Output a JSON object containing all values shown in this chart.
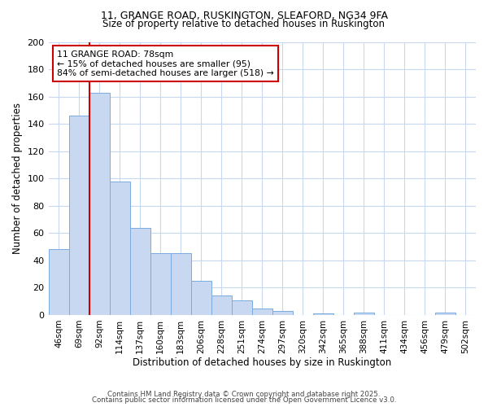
{
  "title1": "11, GRANGE ROAD, RUSKINGTON, SLEAFORD, NG34 9FA",
  "title2": "Size of property relative to detached houses in Ruskington",
  "xlabel": "Distribution of detached houses by size in Ruskington",
  "ylabel": "Number of detached properties",
  "categories": [
    "46sqm",
    "69sqm",
    "92sqm",
    "114sqm",
    "137sqm",
    "160sqm",
    "183sqm",
    "206sqm",
    "228sqm",
    "251sqm",
    "274sqm",
    "297sqm",
    "320sqm",
    "342sqm",
    "365sqm",
    "388sqm",
    "411sqm",
    "434sqm",
    "456sqm",
    "479sqm",
    "502sqm"
  ],
  "values": [
    48,
    146,
    163,
    98,
    64,
    45,
    45,
    25,
    14,
    11,
    5,
    3,
    0,
    1,
    0,
    2,
    0,
    0,
    0,
    2,
    0
  ],
  "bar_color": "#c8d8f0",
  "bar_edge_color": "#7aabe0",
  "red_line_x": 1.5,
  "annotation_text": "11 GRANGE ROAD: 78sqm\n← 15% of detached houses are smaller (95)\n84% of semi-detached houses are larger (518) →",
  "annotation_box_color": "#ffffff",
  "annotation_box_edge": "#cc0000",
  "red_line_color": "#cc0000",
  "grid_color": "#c8d8f0",
  "background_color": "#ffffff",
  "plot_bg_color": "#ffffff",
  "footer1": "Contains HM Land Registry data © Crown copyright and database right 2025.",
  "footer2": "Contains public sector information licensed under the Open Government Licence v3.0.",
  "ylim": [
    0,
    200
  ],
  "yticks": [
    0,
    20,
    40,
    60,
    80,
    100,
    120,
    140,
    160,
    180,
    200
  ]
}
